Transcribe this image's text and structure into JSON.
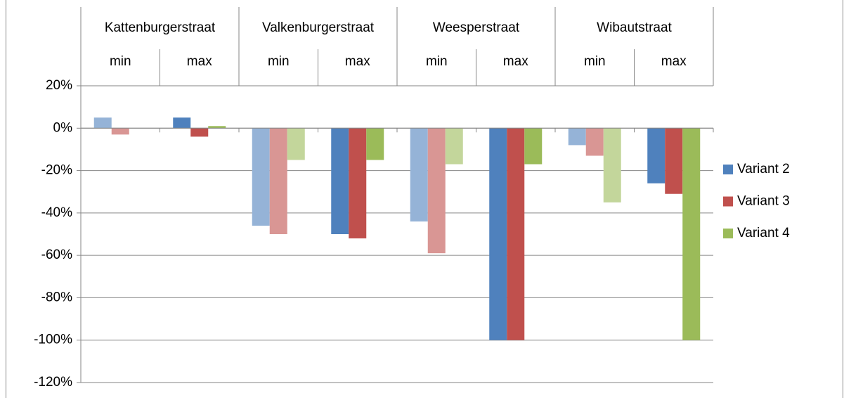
{
  "chart_data": {
    "type": "bar",
    "groups": [
      "Kattenburgerstraat",
      "Valkenburgerstraat",
      "Weesperstraat",
      "Wibautstraat"
    ],
    "categories": [
      "min",
      "max",
      "min",
      "max",
      "min",
      "max",
      "min",
      "max"
    ],
    "series": [
      {
        "name": "Variant 2",
        "color": "#4f81bd",
        "colors": [
          "#95b3d7",
          "#4f81bd",
          "#95b3d7",
          "#4f81bd",
          "#95b3d7",
          "#4f81bd",
          "#95b3d7",
          "#4f81bd"
        ],
        "values": [
          5,
          5,
          -46,
          -50,
          -44,
          -100,
          -8,
          -26
        ]
      },
      {
        "name": "Variant 3",
        "color": "#c0504d",
        "colors": [
          "#d99694",
          "#c0504d",
          "#d99694",
          "#c0504d",
          "#d99694",
          "#c0504d",
          "#d99694",
          "#c0504d"
        ],
        "values": [
          -3,
          -4,
          -50,
          -52,
          -59,
          -100,
          -13,
          -31
        ]
      },
      {
        "name": "Variant 4",
        "color": "#9bbb59",
        "colors": [
          "#c3d69b",
          "#9bbb59",
          "#c3d69b",
          "#9bbb59",
          "#c3d69b",
          "#9bbb59",
          "#c3d69b",
          "#9bbb59"
        ],
        "values": [
          0,
          1,
          -15,
          -15,
          -17,
          -17,
          -35,
          -100
        ]
      }
    ],
    "ylim": [
      -120,
      20
    ],
    "yticks": [
      {
        "value": 20,
        "label": "20%"
      },
      {
        "value": 0,
        "label": "0%"
      },
      {
        "value": -20,
        "label": "-20%"
      },
      {
        "value": -40,
        "label": "-40%"
      },
      {
        "value": -60,
        "label": "-60%"
      },
      {
        "value": -80,
        "label": "-80%"
      },
      {
        "value": -100,
        "label": "-100%"
      },
      {
        "value": -120,
        "label": "-120%"
      }
    ],
    "grid": true,
    "legend": "right"
  }
}
